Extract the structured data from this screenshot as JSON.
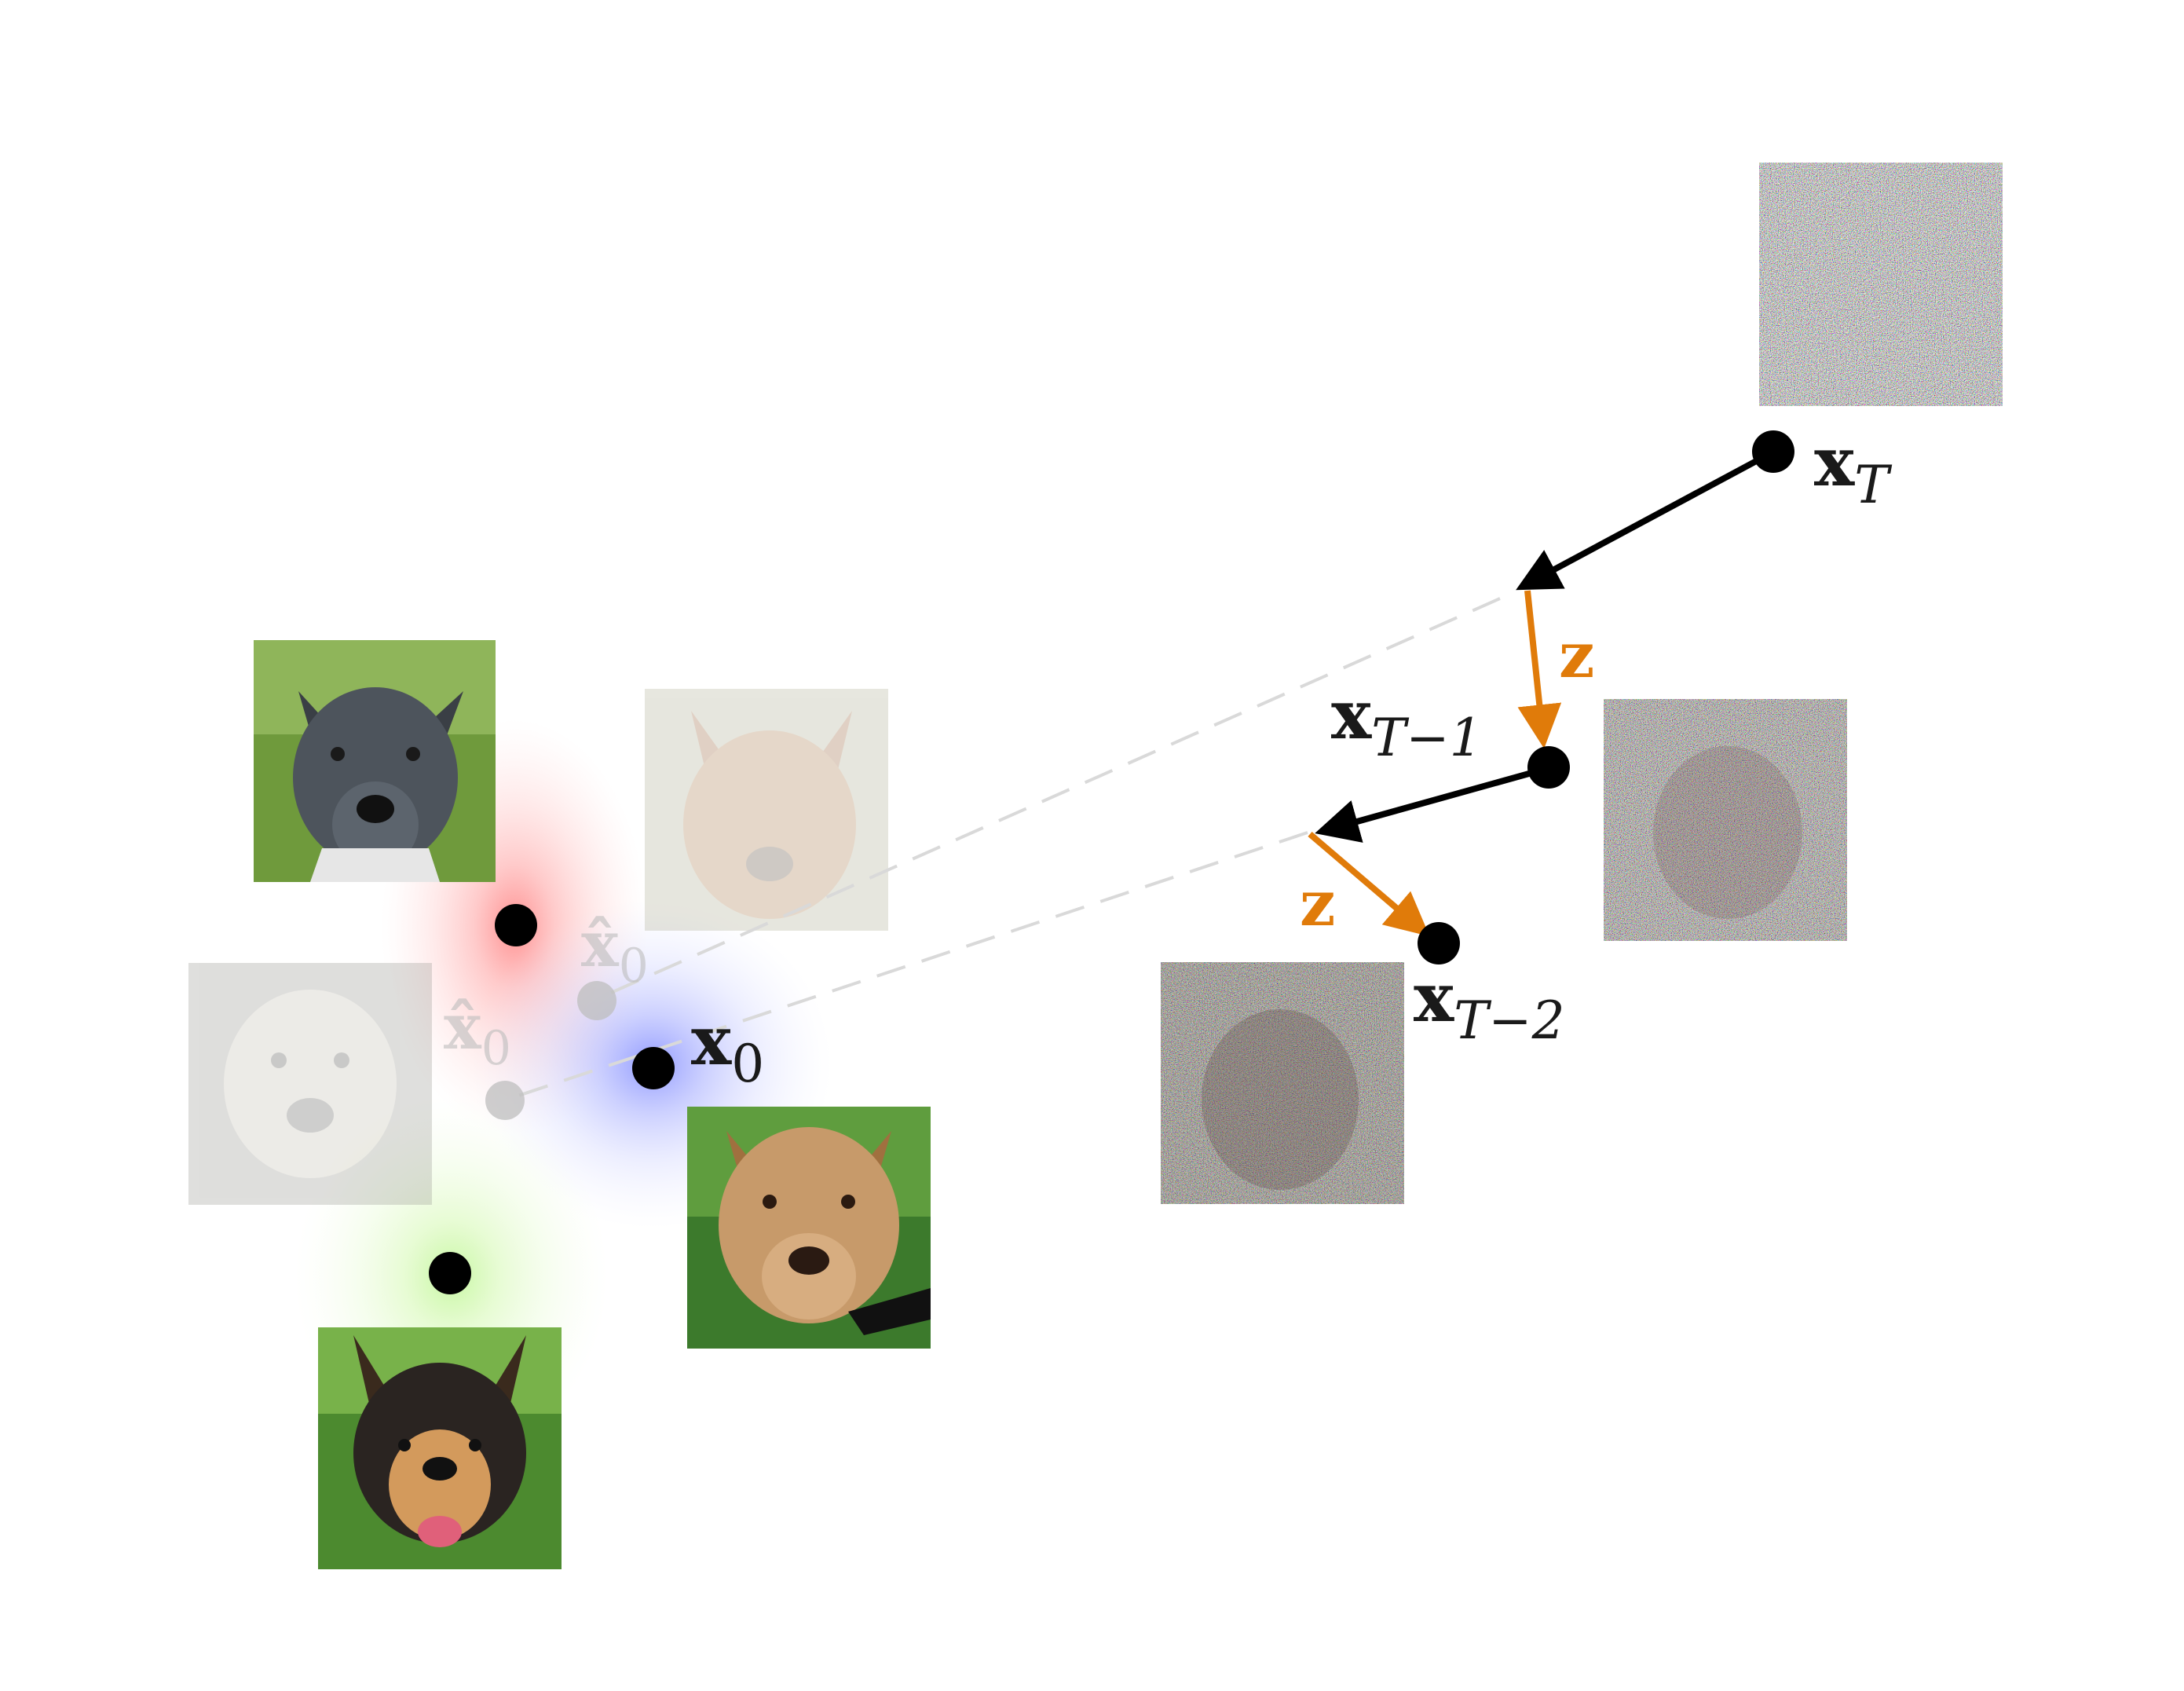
{
  "labels": {
    "xT": {
      "main": "x",
      "sub": "T"
    },
    "xT1": {
      "main": "x",
      "sub": "T−1"
    },
    "xT2": {
      "main": "x",
      "sub": "T−2"
    },
    "x0": {
      "main": "x",
      "sub": "0"
    },
    "x0hat_a": {
      "main": "x̂",
      "sub": "0"
    },
    "x0hat_b": {
      "main": "x̂",
      "sub": "0"
    },
    "z1": "z",
    "z2": "z"
  },
  "colors": {
    "arrow_black": "#000000",
    "noise_step": "#e07b0a",
    "dashed": "#d9d9d9",
    "cluster_red": "#ff6b6b",
    "cluster_blue": "#6f7bff",
    "cluster_green": "#b8f58a",
    "faded_point": "#bdbdbd"
  },
  "icons": {
    "noise_image_xT": "pure-noise-image",
    "noise_image_xT1": "noisy-dog-image",
    "noise_image_xT2": "noisy-dog-image",
    "dog_gray": "gray-pitbull-photo",
    "dog_tan": "tan-pitbull-photo",
    "dog_small": "tricolor-dog-photo",
    "ghost_a": "faded-dog-estimate",
    "ghost_b": "faded-dog-estimate"
  }
}
